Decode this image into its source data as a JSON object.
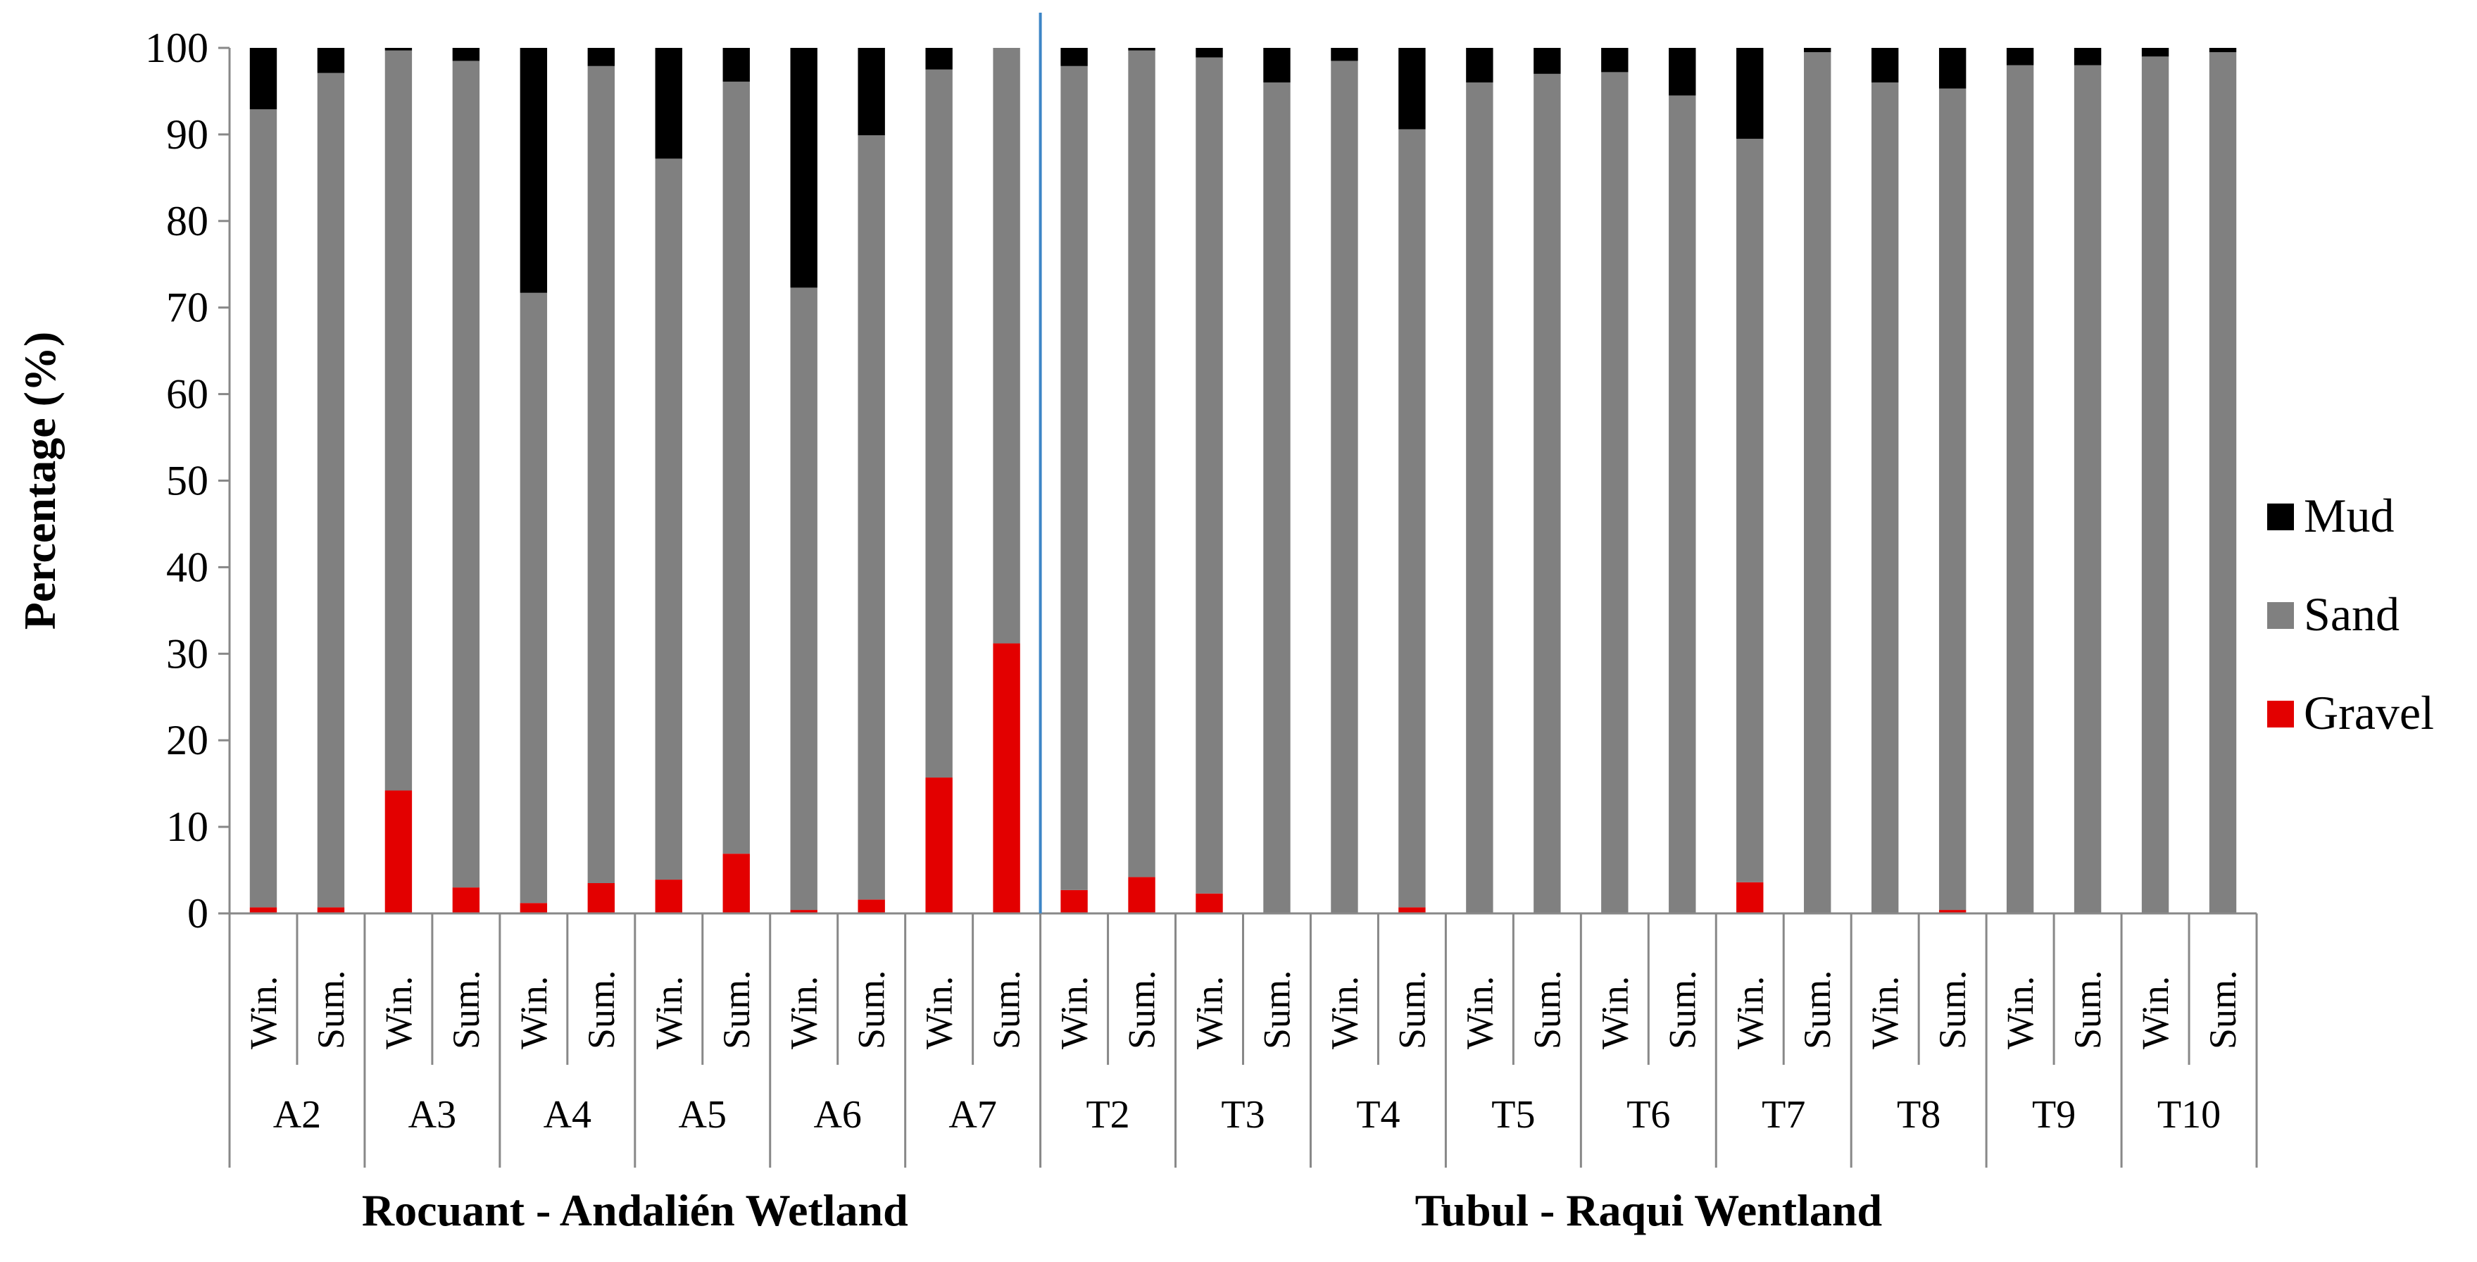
{
  "chart_data": {
    "type": "bar",
    "stacked": true,
    "percent": true,
    "title": "",
    "ylabel": "Percentage (%)",
    "ylim": [
      0,
      100
    ],
    "yticks": [
      0,
      10,
      20,
      30,
      40,
      50,
      60,
      70,
      80,
      90,
      100
    ],
    "grid": false,
    "legend_position": "right",
    "categories": [
      "Win.",
      "Sum.",
      "Win.",
      "Sum.",
      "Win.",
      "Sum.",
      "Win.",
      "Sum.",
      "Win.",
      "Sum.",
      "Win.",
      "Sum.",
      "Win.",
      "Sum.",
      "Win.",
      "Sum.",
      "Win.",
      "Sum.",
      "Win.",
      "Sum.",
      "Win.",
      "Sum.",
      "Win.",
      "Sum.",
      "Win.",
      "Sum.",
      "Win.",
      "Sum.",
      "Win.",
      "Sum."
    ],
    "groups": [
      "A2",
      "A3",
      "A4",
      "A5",
      "A6",
      "A7",
      "T2",
      "T3",
      "T4",
      "T5",
      "T6",
      "T7",
      "T8",
      "T9",
      "T10"
    ],
    "regions": [
      {
        "label": "Rocuant - Andalién Wetland",
        "groups": 6
      },
      {
        "label": "Tubul - Raqui Wentland",
        "groups": 9
      }
    ],
    "series": [
      {
        "name": "Gravel",
        "color": "#e30000",
        "values": [
          0.7,
          0.7,
          14.2,
          3.0,
          1.2,
          3.5,
          3.9,
          6.9,
          0.4,
          1.6,
          15.7,
          31.2,
          2.7,
          4.2,
          2.3,
          0,
          0,
          0.7,
          0,
          0,
          0,
          0,
          3.6,
          0,
          0,
          0.4,
          0,
          0,
          0,
          0
        ]
      },
      {
        "name": "Sand",
        "color": "#808080",
        "values": [
          92.2,
          96.4,
          85.5,
          95.5,
          70.5,
          94.4,
          83.3,
          89.2,
          71.9,
          88.3,
          81.8,
          68.8,
          95.2,
          95.5,
          96.6,
          96.0,
          98.5,
          89.9,
          96.0,
          97.0,
          97.2,
          94.5,
          85.9,
          99.5,
          96.0,
          94.9,
          98.0,
          98.0,
          99.0,
          99.5
        ]
      },
      {
        "name": "Mud",
        "color": "#000000",
        "values": [
          7.1,
          2.9,
          0.3,
          1.5,
          28.3,
          2.1,
          12.8,
          3.9,
          27.7,
          10.1,
          2.5,
          0,
          2.1,
          0.3,
          1.1,
          4.0,
          1.5,
          9.4,
          4.0,
          3.0,
          2.8,
          5.5,
          10.5,
          0.5,
          4.0,
          4.7,
          2.0,
          2.0,
          1.0,
          0.5
        ]
      }
    ]
  }
}
